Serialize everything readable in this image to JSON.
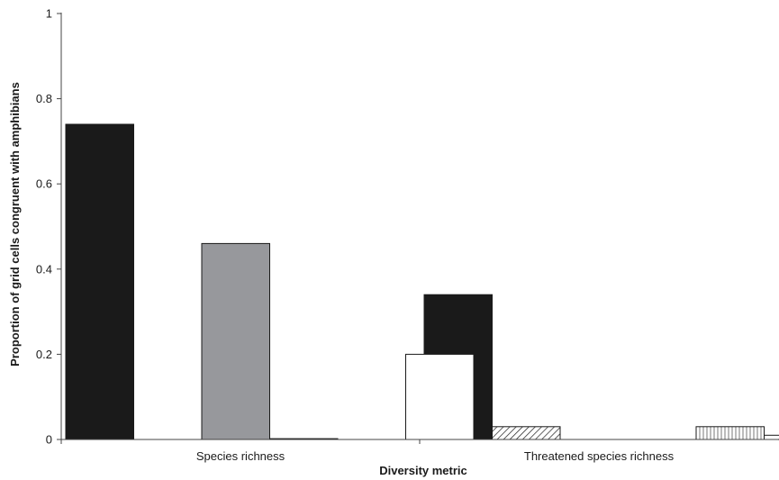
{
  "chart_data": {
    "type": "bar",
    "title": "",
    "xlabel": "Diversity metric",
    "ylabel": "Proportion of grid cells congruent with amphibians",
    "ylim": [
      0,
      1
    ],
    "yticks": [
      "0",
      "0.2",
      "0.4",
      "0.6",
      "0.8",
      "1"
    ],
    "grid": false,
    "legend": "none",
    "categories": [
      "Species richness",
      "Threatened species richness"
    ],
    "series": [
      {
        "fill": "solid",
        "color": "#1a1a1a",
        "values": [
          0.74,
          0.34
        ]
      },
      {
        "fill": "diagonal-hatch",
        "color": "#ffffff",
        "values": [
          0.0,
          0.03
        ]
      },
      {
        "fill": "solid",
        "color": "#97989c",
        "values": [
          0.46,
          0.0
        ]
      },
      {
        "fill": "solid",
        "color": "#ffffff",
        "values": [
          0.002,
          0.0
        ]
      },
      {
        "fill": "vertical-hatch",
        "color": "#ffffff",
        "values": [
          0.0,
          0.03
        ]
      },
      {
        "fill": "solid",
        "color": "#ffffff",
        "values": [
          0.2,
          0.01
        ]
      }
    ]
  }
}
